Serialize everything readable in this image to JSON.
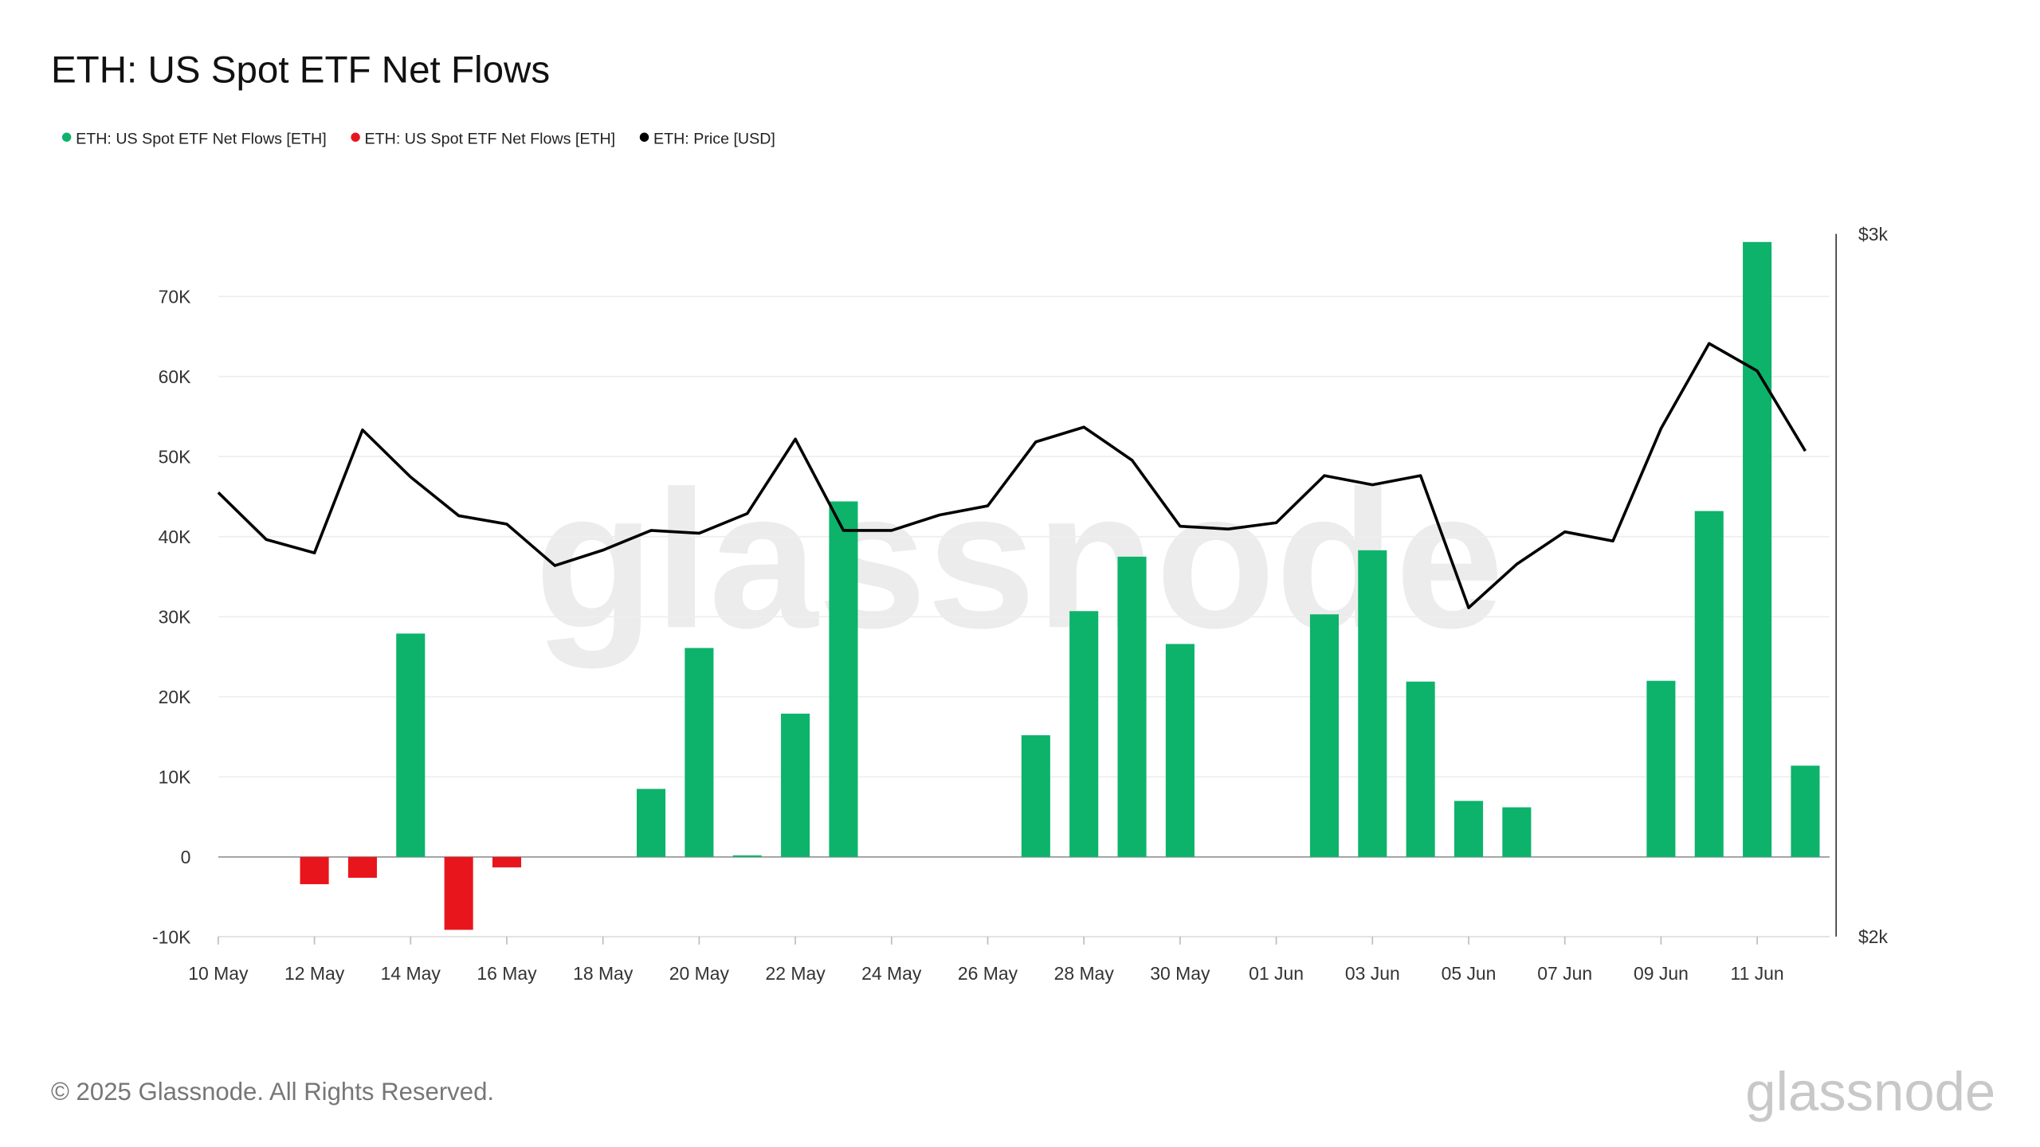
{
  "title": "ETH: US Spot ETF Net Flows",
  "footer": {
    "copyright": "© 2025 Glassnode. All Rights Reserved.",
    "logo": "glassnode",
    "watermark": "glassnode"
  },
  "legend": [
    {
      "label": "ETH: US Spot ETF Net Flows [ETH]",
      "color": "#0db36b"
    },
    {
      "label": "ETH: US Spot ETF Net Flows [ETH]",
      "color": "#e8161c"
    },
    {
      "label": "ETH: Price [USD]",
      "color": "#000000"
    }
  ],
  "chart_data": {
    "type": "bar+line",
    "title": "ETH: US Spot ETF Net Flows",
    "x_tick_labels": [
      "10 May",
      "12 May",
      "14 May",
      "16 May",
      "18 May",
      "20 May",
      "22 May",
      "24 May",
      "26 May",
      "28 May",
      "30 May",
      "01 Jun",
      "03 Jun",
      "05 Jun",
      "07 Jun",
      "09 Jun",
      "11 Jun"
    ],
    "x": [
      "10 May",
      "11 May",
      "12 May",
      "13 May",
      "14 May",
      "15 May",
      "16 May",
      "17 May",
      "18 May",
      "19 May",
      "20 May",
      "21 May",
      "22 May",
      "23 May",
      "24 May",
      "25 May",
      "26 May",
      "27 May",
      "28 May",
      "29 May",
      "30 May",
      "31 May",
      "01 Jun",
      "02 Jun",
      "03 Jun",
      "04 Jun",
      "05 Jun",
      "06 Jun",
      "07 Jun",
      "08 Jun",
      "09 Jun",
      "10 Jun",
      "11 Jun",
      "12 Jun"
    ],
    "y_left": {
      "ticks": [
        "-10K",
        "0",
        "10K",
        "20K",
        "30K",
        "40K",
        "50K",
        "60K",
        "70K"
      ],
      "range": [
        -10000,
        78000
      ]
    },
    "y_right": {
      "ticks": [
        "$2k",
        "$3k"
      ],
      "range": [
        2000,
        3000
      ]
    },
    "grid": true,
    "legend_position": "top-left",
    "series": [
      {
        "name": "ETH: US Spot ETF Net Flows [ETH]",
        "type": "bar",
        "positive_color": "#0db36b",
        "negative_color": "#e8161c",
        "values": [
          0,
          0,
          -3400,
          -2600,
          27900,
          -9100,
          -1300,
          0,
          0,
          8500,
          26100,
          200,
          17900,
          44400,
          0,
          0,
          0,
          15200,
          30700,
          37500,
          26600,
          0,
          0,
          30300,
          38300,
          21900,
          7000,
          6200,
          0,
          0,
          22000,
          43200,
          76800,
          11400
        ]
      },
      {
        "name": "ETH: Price [USD]",
        "type": "line",
        "color": "#000000",
        "axis": "right",
        "values": [
          2632,
          2565,
          2546,
          2721,
          2654,
          2599,
          2587,
          2528,
          2550,
          2578,
          2574,
          2602,
          2708,
          2578,
          2578,
          2600,
          2613,
          2704,
          2725,
          2678,
          2584,
          2580,
          2589,
          2656,
          2643,
          2656,
          2468,
          2530,
          2576,
          2563,
          2723,
          2844,
          2805,
          2691
        ]
      }
    ]
  }
}
